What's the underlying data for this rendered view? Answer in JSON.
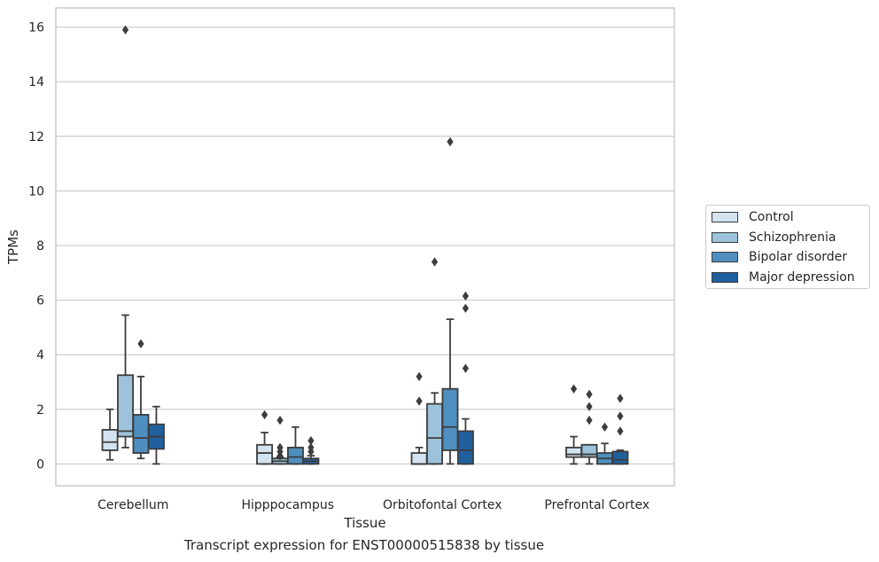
{
  "chart_data": {
    "type": "boxplot",
    "xlabel": "Tissue",
    "ylabel": "TPMs",
    "caption": "Transcript expression for ENST00000515838 by tissue",
    "ylim": [
      -0.8,
      16.7
    ],
    "yticks": [
      0,
      2,
      4,
      6,
      8,
      10,
      12,
      14,
      16
    ],
    "grid": "horizontal",
    "legend_position": "right",
    "categories": [
      "Cerebellum",
      "Hipppocampus",
      "Orbitofontal Cortex",
      "Prefrontal Cortex"
    ],
    "series": [
      {
        "name": "Control",
        "color": "#d4e3f0",
        "boxes": [
          {
            "whislo": 0.15,
            "q1": 0.5,
            "med": 0.8,
            "q3": 1.25,
            "whishi": 2.0,
            "fliers": []
          },
          {
            "whislo": 0.0,
            "q1": 0.0,
            "med": 0.4,
            "q3": 0.7,
            "whishi": 1.15,
            "fliers": [
              1.8
            ]
          },
          {
            "whislo": 0.0,
            "q1": 0.0,
            "med": 0.0,
            "q3": 0.4,
            "whishi": 0.6,
            "fliers": [
              2.3,
              3.2
            ]
          },
          {
            "whislo": 0.0,
            "q1": 0.25,
            "med": 0.35,
            "q3": 0.6,
            "whishi": 1.0,
            "fliers": [
              2.75
            ]
          }
        ]
      },
      {
        "name": "Schizophrenia",
        "color": "#9dc3dc",
        "boxes": [
          {
            "whislo": 0.6,
            "q1": 1.0,
            "med": 1.2,
            "q3": 3.25,
            "whishi": 5.45,
            "fliers": [
              15.9
            ]
          },
          {
            "whislo": 0.0,
            "q1": 0.0,
            "med": 0.1,
            "q3": 0.2,
            "whishi": 0.25,
            "fliers": [
              0.3,
              0.45,
              0.6,
              1.6
            ]
          },
          {
            "whislo": 0.0,
            "q1": 0.0,
            "med": 0.95,
            "q3": 2.2,
            "whishi": 2.6,
            "fliers": [
              7.4
            ]
          },
          {
            "whislo": 0.0,
            "q1": 0.25,
            "med": 0.35,
            "q3": 0.7,
            "whishi": 0.7,
            "fliers": [
              1.6,
              2.1,
              2.55
            ]
          }
        ]
      },
      {
        "name": "Bipolar disorder",
        "color": "#4e8fc0",
        "boxes": [
          {
            "whislo": 0.2,
            "q1": 0.4,
            "med": 0.95,
            "q3": 1.8,
            "whishi": 3.2,
            "fliers": [
              4.4
            ]
          },
          {
            "whislo": 0.0,
            "q1": 0.0,
            "med": 0.25,
            "q3": 0.6,
            "whishi": 1.35,
            "fliers": []
          },
          {
            "whislo": 0.0,
            "q1": 0.5,
            "med": 1.35,
            "q3": 2.75,
            "whishi": 5.3,
            "fliers": [
              11.8
            ]
          },
          {
            "whislo": 0.0,
            "q1": 0.0,
            "med": 0.2,
            "q3": 0.4,
            "whishi": 0.75,
            "fliers": [
              1.35
            ]
          }
        ]
      },
      {
        "name": "Major depression",
        "color": "#21609f",
        "boxes": [
          {
            "whislo": 0.0,
            "q1": 0.55,
            "med": 1.0,
            "q3": 1.45,
            "whishi": 2.1,
            "fliers": []
          },
          {
            "whislo": 0.0,
            "q1": 0.0,
            "med": 0.1,
            "q3": 0.2,
            "whishi": 0.3,
            "fliers": [
              0.45,
              0.6,
              0.85
            ]
          },
          {
            "whislo": 0.0,
            "q1": 0.0,
            "med": 0.5,
            "q3": 1.2,
            "whishi": 1.65,
            "fliers": [
              3.5,
              5.7,
              6.15
            ]
          },
          {
            "whislo": 0.0,
            "q1": 0.0,
            "med": 0.15,
            "q3": 0.45,
            "whishi": 0.5,
            "fliers": [
              1.2,
              1.75,
              2.4
            ]
          }
        ]
      }
    ]
  }
}
